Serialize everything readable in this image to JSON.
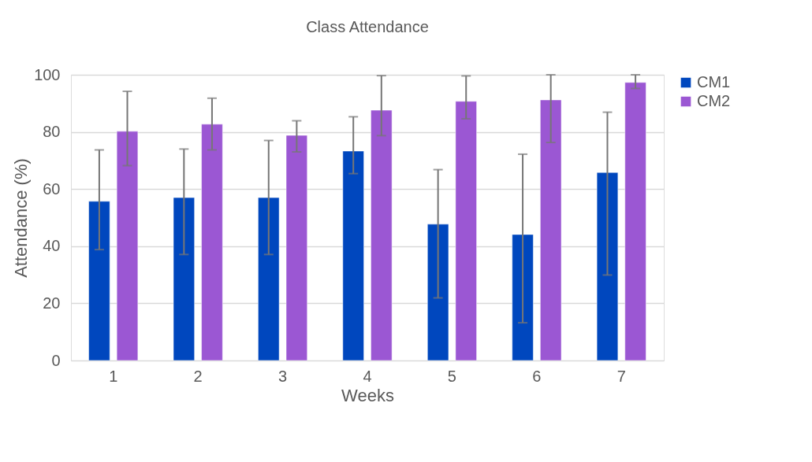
{
  "chart_data": {
    "type": "bar",
    "title": "Class Attendance",
    "xlabel": "Weeks",
    "ylabel": "Attendance (%)",
    "categories": [
      "1",
      "2",
      "3",
      "4",
      "5",
      "6",
      "7"
    ],
    "series": [
      {
        "name": "CM1",
        "color": "#0047be",
        "values": [
          55.7,
          57.0,
          57.0,
          73.3,
          47.7,
          44.1,
          65.8
        ],
        "errors": [
          [
            38.8,
            73.7
          ],
          [
            37.1,
            74.0
          ],
          [
            37.1,
            77.0
          ],
          [
            65.4,
            85.3
          ],
          [
            21.9,
            66.8
          ],
          [
            13.2,
            72.2
          ],
          [
            29.9,
            86.9
          ]
        ]
      },
      {
        "name": "CM2",
        "color": "#9b57d3",
        "values": [
          80.2,
          82.7,
          78.8,
          87.6,
          90.7,
          91.2,
          97.3
        ],
        "errors": [
          [
            68.2,
            94.2
          ],
          [
            73.7,
            91.8
          ],
          [
            73.0,
            83.9
          ],
          [
            78.7,
            99.7
          ],
          [
            84.6,
            99.6
          ],
          [
            76.3,
            100
          ],
          [
            95.2,
            100
          ]
        ]
      }
    ],
    "ylim": [
      0,
      100
    ],
    "yticks": [
      0,
      20,
      40,
      60,
      80,
      100
    ],
    "grid": "y",
    "legend": "right"
  }
}
